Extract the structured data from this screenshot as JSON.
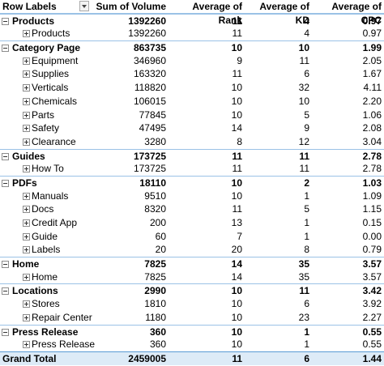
{
  "header": {
    "columns": [
      "Row Labels",
      "Sum of Volume",
      "Average of Rank",
      "Average of KD",
      "Average of CPC"
    ]
  },
  "groups": [
    {
      "label": "Products",
      "values": [
        "1392260",
        "11",
        "4",
        "0.97"
      ],
      "rows": [
        {
          "label": "Products",
          "values": [
            "1392260",
            "11",
            "4",
            "0.97"
          ]
        }
      ]
    },
    {
      "label": "Category Page",
      "values": [
        "863735",
        "10",
        "10",
        "1.99"
      ],
      "rows": [
        {
          "label": "Equipment",
          "values": [
            "346960",
            "9",
            "11",
            "2.05"
          ]
        },
        {
          "label": "Supplies",
          "values": [
            "163320",
            "11",
            "6",
            "1.67"
          ]
        },
        {
          "label": "Verticals",
          "values": [
            "118820",
            "10",
            "32",
            "4.11"
          ]
        },
        {
          "label": "Chemicals",
          "values": [
            "106015",
            "10",
            "10",
            "2.20"
          ]
        },
        {
          "label": "Parts",
          "values": [
            "77845",
            "10",
            "5",
            "1.06"
          ]
        },
        {
          "label": "Safety",
          "values": [
            "47495",
            "14",
            "9",
            "2.08"
          ]
        },
        {
          "label": "Clearance",
          "values": [
            "3280",
            "8",
            "12",
            "3.04"
          ]
        }
      ]
    },
    {
      "label": "Guides",
      "values": [
        "173725",
        "11",
        "11",
        "2.78"
      ],
      "rows": [
        {
          "label": "How To",
          "values": [
            "173725",
            "11",
            "11",
            "2.78"
          ]
        }
      ]
    },
    {
      "label": "PDFs",
      "values": [
        "18110",
        "10",
        "2",
        "1.03"
      ],
      "rows": [
        {
          "label": "Manuals",
          "values": [
            "9510",
            "10",
            "1",
            "1.09"
          ]
        },
        {
          "label": "Docs",
          "values": [
            "8320",
            "11",
            "5",
            "1.15"
          ]
        },
        {
          "label": "Credit App",
          "values": [
            "200",
            "13",
            "1",
            "0.15"
          ]
        },
        {
          "label": "Guide",
          "values": [
            "60",
            "7",
            "1",
            "0.00"
          ]
        },
        {
          "label": "Labels",
          "values": [
            "20",
            "20",
            "8",
            "0.79"
          ]
        }
      ]
    },
    {
      "label": "Home",
      "values": [
        "7825",
        "14",
        "35",
        "3.57"
      ],
      "rows": [
        {
          "label": "Home",
          "values": [
            "7825",
            "14",
            "35",
            "3.57"
          ]
        }
      ]
    },
    {
      "label": "Locations",
      "values": [
        "2990",
        "10",
        "11",
        "3.42"
      ],
      "rows": [
        {
          "label": "Stores",
          "values": [
            "1810",
            "10",
            "6",
            "3.92"
          ]
        },
        {
          "label": "Repair Center",
          "values": [
            "1180",
            "10",
            "23",
            "2.27"
          ]
        }
      ]
    },
    {
      "label": "Press Release",
      "values": [
        "360",
        "10",
        "1",
        "0.55"
      ],
      "rows": [
        {
          "label": "Press Release",
          "values": [
            "360",
            "10",
            "1",
            "0.55"
          ]
        }
      ]
    }
  ],
  "grand_total": {
    "label": "Grand Total",
    "values": [
      "2459005",
      "11",
      "6",
      "1.44"
    ]
  }
}
